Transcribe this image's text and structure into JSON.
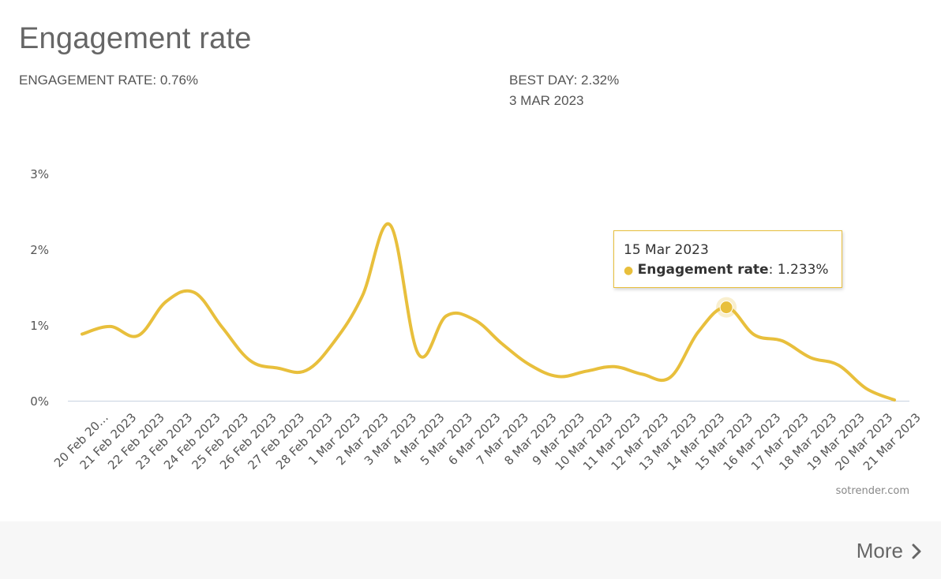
{
  "header": {
    "title": "Engagement rate",
    "engagement_rate_label": "ENGAGEMENT RATE: 0.76%",
    "best_day_label": "BEST DAY: 2.32%",
    "best_day_date": "3 MAR 2023"
  },
  "tooltip": {
    "date": "15 Mar 2023",
    "series_name": "Engagement rate",
    "value": ": 1.233%"
  },
  "credit": "sotrender.com",
  "footer": {
    "more_label": "More"
  },
  "colors": {
    "series": "#e8bf3c",
    "axis": "#c8d3e0",
    "text": "#666666"
  },
  "chart_data": {
    "type": "line",
    "title": "Engagement rate",
    "xlabel": "",
    "ylabel": "",
    "ylim": [
      0,
      3
    ],
    "y_ticks": [
      "0%",
      "1%",
      "2%",
      "3%"
    ],
    "categories": [
      "20 Feb 20…",
      "21 Feb 2023",
      "22 Feb 2023",
      "23 Feb 2023",
      "24 Feb 2023",
      "25 Feb 2023",
      "26 Feb 2023",
      "27 Feb 2023",
      "28 Feb 2023",
      "1 Mar 2023",
      "2 Mar 2023",
      "3 Mar 2023",
      "4 Mar 2023",
      "5 Mar 2023",
      "6 Mar 2023",
      "7 Mar 2023",
      "8 Mar 2023",
      "9 Mar 2023",
      "10 Mar 2023",
      "11 Mar 2023",
      "12 Mar 2023",
      "13 Mar 2023",
      "14 Mar 2023",
      "15 Mar 2023",
      "16 Mar 2023",
      "17 Mar 2023",
      "18 Mar 2023",
      "19 Mar 2023",
      "20 Mar 2023",
      "21 Mar 2023"
    ],
    "series": [
      {
        "name": "Engagement rate",
        "values": [
          0.88,
          0.98,
          0.86,
          1.31,
          1.43,
          0.97,
          0.53,
          0.43,
          0.4,
          0.78,
          1.38,
          2.32,
          0.62,
          1.12,
          1.07,
          0.75,
          0.47,
          0.32,
          0.39,
          0.45,
          0.35,
          0.31,
          0.91,
          1.233,
          0.87,
          0.79,
          0.57,
          0.47,
          0.16,
          0.01
        ]
      }
    ],
    "highlight_index": 23
  }
}
